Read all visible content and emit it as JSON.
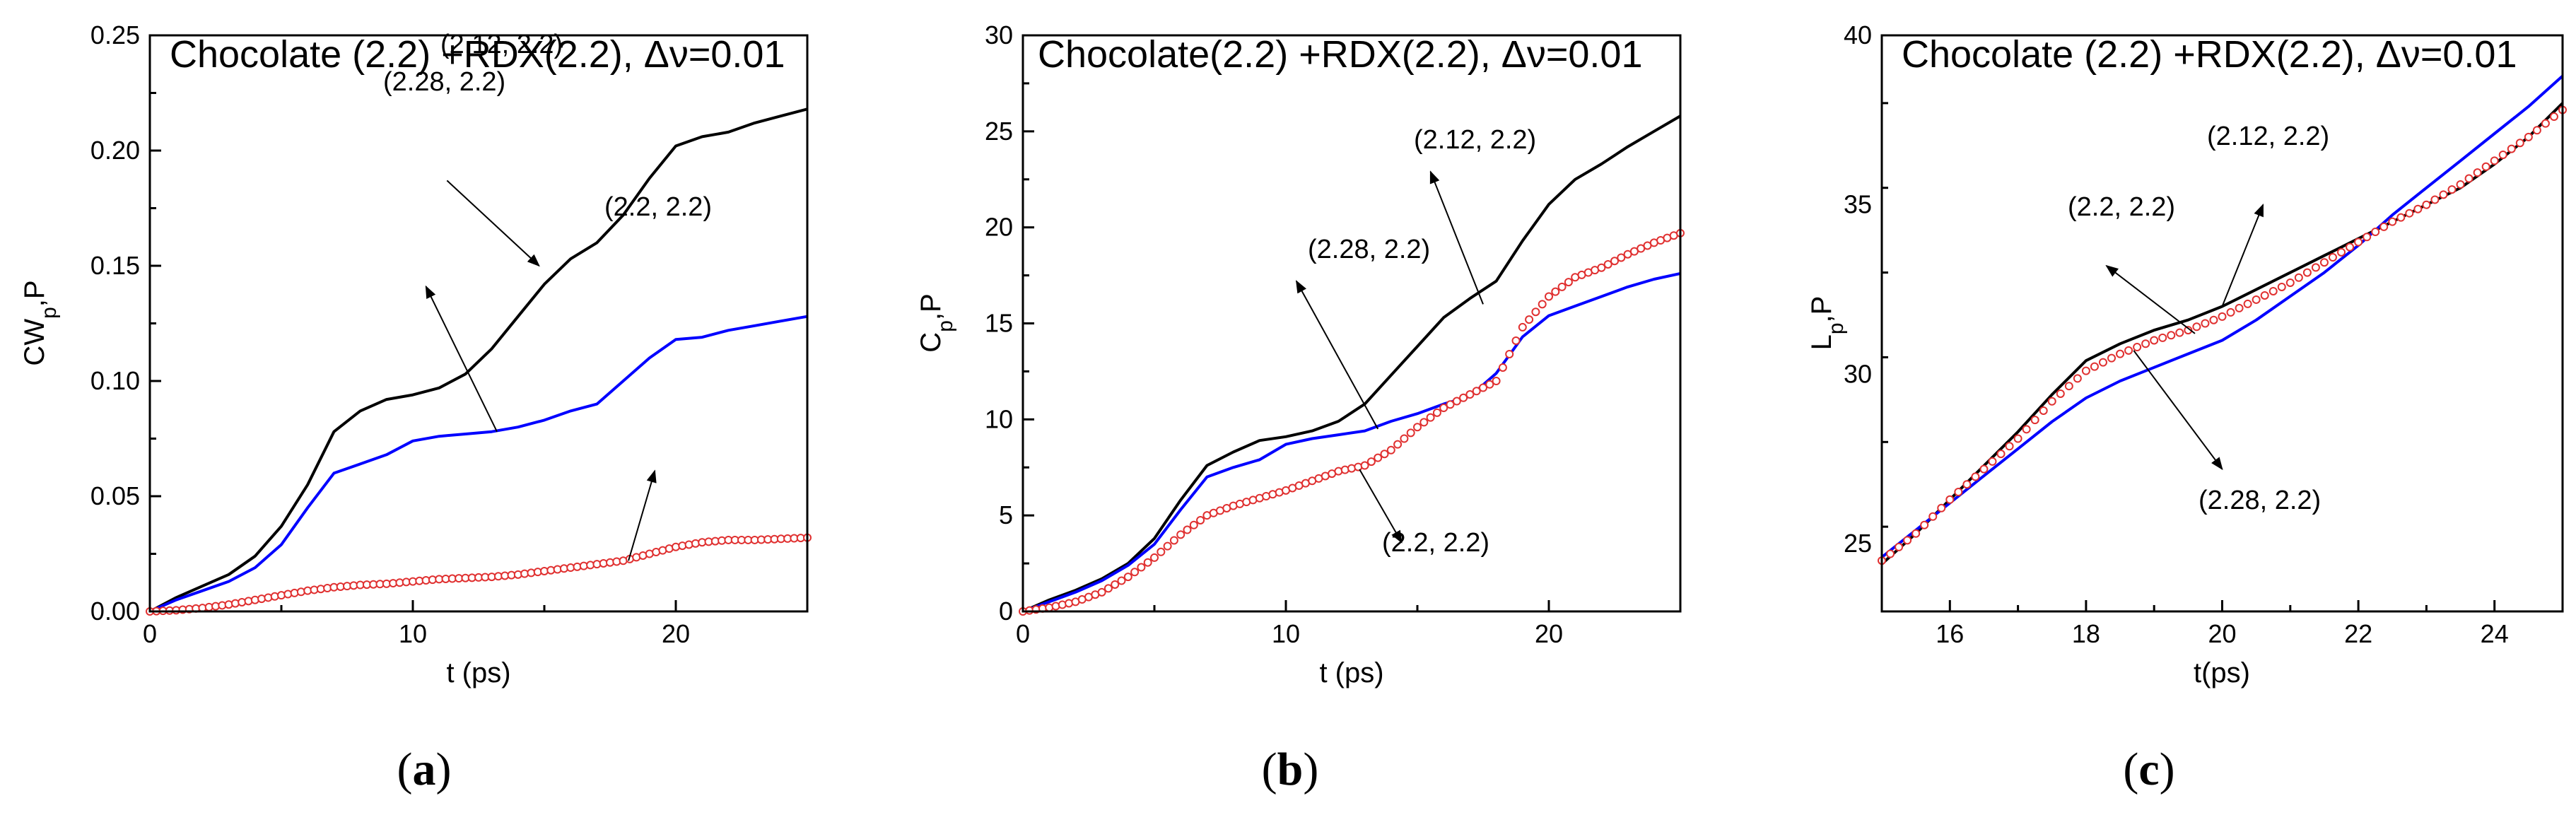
{
  "chart_data": [
    {
      "type": "line",
      "title": "Chocolate (2.2) +RDX(2.2), Δν=0.01",
      "xlabel": "t (ps)",
      "ylabel_main": "CW",
      "ylabel_sub": "p",
      "ylabel_tail": ",P",
      "xlim": [
        0,
        25
      ],
      "ylim": [
        0,
        0.25
      ],
      "xticks": [
        0,
        10,
        20
      ],
      "xtick_labels": [
        "0",
        "10",
        "20"
      ],
      "yticks": [
        0.0,
        0.05,
        0.1,
        0.15,
        0.2,
        0.25
      ],
      "ytick_labels": [
        "0.00",
        "0.05",
        "0.10",
        "0.15",
        "0.20",
        "0.25"
      ],
      "caption": "a",
      "series": [
        {
          "name": "(2.12, 2.2)",
          "color": "#000000",
          "style": "line",
          "x": [
            0,
            1,
            2,
            3,
            4,
            5,
            6,
            7,
            8,
            9,
            10,
            11,
            12,
            13,
            14,
            15,
            16,
            17,
            18,
            19,
            20,
            21,
            22,
            23,
            24,
            25
          ],
          "y": [
            0.0,
            0.006,
            0.011,
            0.016,
            0.024,
            0.037,
            0.055,
            0.078,
            0.087,
            0.092,
            0.094,
            0.097,
            0.103,
            0.114,
            0.128,
            0.142,
            0.153,
            0.16,
            0.172,
            0.188,
            0.202,
            0.206,
            0.208,
            0.212,
            0.215,
            0.218
          ]
        },
        {
          "name": "(2.28, 2.2)",
          "color": "#0000ff",
          "style": "line",
          "x": [
            0,
            1,
            2,
            3,
            4,
            5,
            6,
            7,
            8,
            9,
            10,
            11,
            12,
            13,
            14,
            15,
            16,
            17,
            18,
            19,
            20,
            21,
            22,
            23,
            24,
            25
          ],
          "y": [
            0.0,
            0.005,
            0.009,
            0.013,
            0.019,
            0.029,
            0.045,
            0.06,
            0.064,
            0.068,
            0.074,
            0.076,
            0.077,
            0.078,
            0.08,
            0.083,
            0.087,
            0.09,
            0.1,
            0.11,
            0.118,
            0.119,
            0.122,
            0.124,
            0.126,
            0.128
          ]
        },
        {
          "name": "(2.2, 2.2)",
          "color": "#e03030",
          "style": "circles",
          "x": [
            0,
            1,
            2,
            3,
            4,
            5,
            6,
            7,
            8,
            9,
            10,
            11,
            12,
            13,
            14,
            15,
            16,
            17,
            18,
            19,
            20,
            21,
            22,
            23,
            24,
            25
          ],
          "y": [
            0.0,
            0.0005,
            0.0015,
            0.003,
            0.005,
            0.007,
            0.009,
            0.0105,
            0.0115,
            0.012,
            0.013,
            0.014,
            0.0145,
            0.015,
            0.016,
            0.0175,
            0.019,
            0.0205,
            0.022,
            0.025,
            0.028,
            0.03,
            0.031,
            0.031,
            0.0315,
            0.032
          ]
        }
      ],
      "annotations": [
        {
          "text": "(2.12, 2.2)",
          "arrow_from": [
            11.3,
            0.187
          ],
          "arrow_to": [
            14.8,
            0.15
          ]
        },
        {
          "text": "(2.28, 2.2)",
          "arrow_from": [
            13.2,
            0.078
          ],
          "arrow_to": [
            10.5,
            0.141
          ]
        },
        {
          "text": "(2.2, 2.2)",
          "arrow_from": [
            18.2,
            0.022
          ],
          "arrow_to": [
            19.2,
            0.061
          ]
        }
      ]
    },
    {
      "type": "line",
      "title": "Chocolate(2.2) +RDX(2.2), Δν=0.01",
      "xlabel": "t (ps)",
      "ylabel_main": "C",
      "ylabel_sub": "p",
      "ylabel_tail": ",P",
      "xlim": [
        0,
        25
      ],
      "ylim": [
        0,
        30
      ],
      "xticks": [
        0,
        10,
        20
      ],
      "xtick_labels": [
        "0",
        "10",
        "20"
      ],
      "yticks": [
        0,
        5,
        10,
        15,
        20,
        25,
        30
      ],
      "ytick_labels": [
        "0",
        "5",
        "10",
        "15",
        "20",
        "25",
        "30"
      ],
      "caption": "b",
      "series": [
        {
          "name": "(2.12, 2.2)",
          "color": "#000000",
          "style": "line",
          "x": [
            0,
            1,
            2,
            3,
            4,
            5,
            6,
            7,
            8,
            9,
            10,
            11,
            12,
            13,
            14,
            15,
            16,
            17,
            18,
            19,
            20,
            21,
            22,
            23,
            24,
            25
          ],
          "y": [
            0.0,
            0.6,
            1.1,
            1.7,
            2.5,
            3.8,
            5.8,
            7.6,
            8.3,
            8.9,
            9.1,
            9.4,
            9.9,
            10.8,
            12.3,
            13.8,
            15.3,
            16.3,
            17.2,
            19.3,
            21.2,
            22.5,
            23.3,
            24.2,
            25.0,
            25.8
          ]
        },
        {
          "name": "(2.28, 2.2)",
          "color": "#0000ff",
          "style": "line",
          "x": [
            0,
            1,
            2,
            3,
            4,
            5,
            6,
            7,
            8,
            9,
            10,
            11,
            12,
            13,
            14,
            15,
            16,
            17,
            18,
            19,
            20,
            21,
            22,
            23,
            24,
            25
          ],
          "y": [
            0.0,
            0.5,
            1.0,
            1.6,
            2.4,
            3.5,
            5.3,
            7.0,
            7.5,
            7.9,
            8.7,
            9.0,
            9.2,
            9.4,
            9.9,
            10.3,
            10.8,
            11.2,
            12.4,
            14.3,
            15.4,
            15.9,
            16.4,
            16.9,
            17.3,
            17.6
          ]
        },
        {
          "name": "(2.2, 2.2)",
          "color": "#e03030",
          "style": "circles",
          "x": [
            0,
            1,
            2,
            3,
            4,
            5,
            6,
            7,
            8,
            9,
            10,
            11,
            12,
            13,
            14,
            15,
            16,
            17,
            18,
            19,
            20,
            21,
            22,
            23,
            24,
            25
          ],
          "y": [
            0.0,
            0.2,
            0.5,
            1.0,
            1.8,
            2.8,
            4.0,
            5.0,
            5.5,
            5.9,
            6.3,
            6.8,
            7.3,
            7.6,
            8.4,
            9.6,
            10.6,
            11.3,
            12.0,
            14.8,
            16.4,
            17.4,
            17.9,
            18.6,
            19.2,
            19.7
          ]
        }
      ],
      "annotations": [
        {
          "text": "(2.12, 2.2)",
          "arrow_from": [
            17.5,
            16.0
          ],
          "arrow_to": [
            15.5,
            22.9
          ]
        },
        {
          "text": "(2.28, 2.2)",
          "arrow_from": [
            13.5,
            9.5
          ],
          "arrow_to": [
            10.4,
            17.2
          ]
        },
        {
          "text": "(2.2, 2.2)",
          "arrow_from": [
            12.8,
            7.4
          ],
          "arrow_to": [
            14.4,
            3.6
          ]
        }
      ]
    },
    {
      "type": "line",
      "title": "Chocolate (2.2) +RDX(2.2), Δν=0.01",
      "xlabel": "t(ps)",
      "ylabel_main": "L",
      "ylabel_sub": "p",
      "ylabel_tail": ",P",
      "xlim": [
        15,
        25
      ],
      "ylim": [
        23,
        40
      ],
      "xticks": [
        16,
        18,
        20,
        22,
        24
      ],
      "xtick_labels": [
        "16",
        "18",
        "20",
        "22",
        "24"
      ],
      "yticks": [
        25,
        30,
        35,
        40
      ],
      "ytick_labels": [
        "25",
        "30",
        "35",
        "40"
      ],
      "caption": "c",
      "series": [
        {
          "name": "(2.12, 2.2)",
          "color": "#000000",
          "style": "line",
          "x": [
            15,
            15.5,
            16,
            16.5,
            17,
            17.5,
            18,
            18.5,
            19,
            19.5,
            20,
            20.5,
            21,
            21.5,
            22,
            22.5,
            23,
            23.5,
            24,
            24.5,
            25
          ],
          "y": [
            24.4,
            25.3,
            26.3,
            27.3,
            28.3,
            29.4,
            30.4,
            30.9,
            31.3,
            31.6,
            32.0,
            32.5,
            33.0,
            33.5,
            34.0,
            34.5,
            35.0,
            35.5,
            36.2,
            37.0,
            38.0
          ]
        },
        {
          "name": "(2.28, 2.2)",
          "color": "#0000ff",
          "style": "line",
          "x": [
            15,
            15.5,
            16,
            16.5,
            17,
            17.5,
            18,
            18.5,
            19,
            19.5,
            20,
            20.5,
            21,
            21.5,
            22,
            22.5,
            23,
            23.5,
            24,
            24.5,
            25
          ],
          "y": [
            24.6,
            25.4,
            26.2,
            27.0,
            27.8,
            28.6,
            29.3,
            29.8,
            30.2,
            30.6,
            31.0,
            31.6,
            32.3,
            33.0,
            33.8,
            34.7,
            35.5,
            36.3,
            37.1,
            37.9,
            38.8
          ]
        },
        {
          "name": "(2.2, 2.2)",
          "color": "#e03030",
          "style": "circles",
          "x": [
            15,
            15.5,
            16,
            16.5,
            17,
            17.5,
            18,
            18.5,
            19,
            19.5,
            20,
            20.5,
            21,
            21.5,
            22,
            22.5,
            23,
            23.5,
            24,
            24.5,
            25
          ],
          "y": [
            24.5,
            25.3,
            26.3,
            27.2,
            28.1,
            29.2,
            30.1,
            30.6,
            31.0,
            31.3,
            31.7,
            32.2,
            32.7,
            33.3,
            33.9,
            34.5,
            35.0,
            35.6,
            36.3,
            37.0,
            37.8
          ]
        }
      ],
      "annotations": [
        {
          "text": "(2.12, 2.2)",
          "arrow_from": [
            20.0,
            32.0
          ],
          "arrow_to": [
            20.6,
            35.0
          ]
        },
        {
          "text": "(2.2, 2.2)",
          "arrow_from": [
            19.6,
            31.2
          ],
          "arrow_to": [
            18.3,
            33.2
          ]
        },
        {
          "text": "(2.28, 2.2)",
          "arrow_from": [
            18.7,
            30.7
          ],
          "arrow_to": [
            20.0,
            27.2
          ]
        }
      ]
    }
  ]
}
